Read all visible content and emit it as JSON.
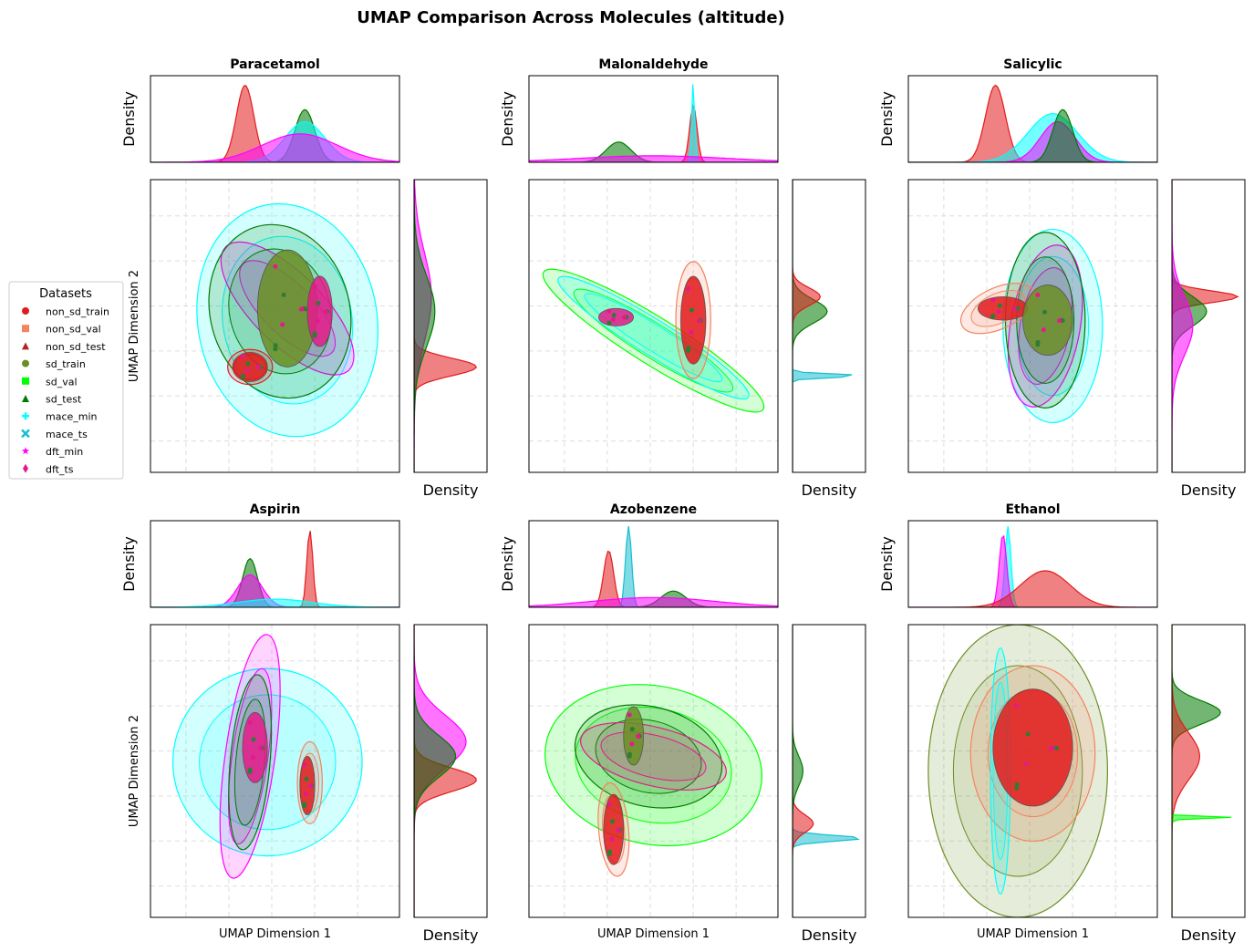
{
  "figure": {
    "title": "UMAP Comparison Across Molecules (altitude)"
  },
  "axes_text": {
    "density": "Density",
    "umap_x": "UMAP Dimension 1",
    "umap_y": "UMAP Dimension 2"
  },
  "legend": {
    "title": "Datasets",
    "items": [
      {
        "label": "non_sd_train",
        "color": "#e31a1c",
        "marker": "circle"
      },
      {
        "label": "non_sd_val",
        "color": "#f4845f",
        "marker": "square"
      },
      {
        "label": "non_sd_test",
        "color": "#b22222",
        "marker": "triangle"
      },
      {
        "label": "sd_train",
        "color": "#6b8e23",
        "marker": "circle"
      },
      {
        "label": "sd_val",
        "color": "#00ff00",
        "marker": "square"
      },
      {
        "label": "sd_test",
        "color": "#007a00",
        "marker": "triangle"
      },
      {
        "label": "mace_min",
        "color": "#00ffff",
        "marker": "plus"
      },
      {
        "label": "mace_ts",
        "color": "#17becf",
        "marker": "x"
      },
      {
        "label": "dft_min",
        "color": "#ff00ff",
        "marker": "star"
      },
      {
        "label": "dft_ts",
        "color": "#e6198c",
        "marker": "diamond"
      }
    ]
  },
  "chart_data": [
    {
      "type": "scatter",
      "title": "Paracetamol",
      "xlabel": "",
      "ylabel": "UMAP Dimension 2",
      "grid": true,
      "clusters": [
        {
          "series": "non_sd_train",
          "x": 0.4,
          "y": 0.36,
          "rx": 0.07,
          "ry": 0.05
        },
        {
          "series": "sd_train",
          "x": 0.55,
          "y": 0.56,
          "rx": 0.12,
          "ry": 0.2
        },
        {
          "series": "dft_ts",
          "x": 0.68,
          "y": 0.55,
          "rx": 0.05,
          "ry": 0.12
        }
      ],
      "contours": [
        {
          "series": "mace_min",
          "x": 0.55,
          "y": 0.52,
          "rx": 0.36,
          "ry": 0.4,
          "rot": -10
        },
        {
          "series": "dft_min",
          "x": 0.55,
          "y": 0.56,
          "rx": 0.35,
          "ry": 0.12,
          "rot": 45
        },
        {
          "series": "sd_test",
          "x": 0.52,
          "y": 0.55,
          "rx": 0.28,
          "ry": 0.3,
          "rot": -15
        },
        {
          "series": "non_sd_train",
          "x": 0.4,
          "y": 0.36,
          "rx": 0.09,
          "ry": 0.06,
          "rot": 0
        }
      ],
      "marg_x": [
        {
          "series": "non_sd_train",
          "mu": 0.38,
          "s": 0.035,
          "h": 0.95
        },
        {
          "series": "sd_test",
          "mu": 0.62,
          "s": 0.04,
          "h": 0.65
        },
        {
          "series": "mace_min",
          "mu": 0.62,
          "s": 0.08,
          "h": 0.5
        },
        {
          "series": "dft_min",
          "mu": 0.6,
          "s": 0.15,
          "h": 0.35
        }
      ],
      "marg_y": [
        {
          "series": "non_sd_train",
          "mu": 0.36,
          "s": 0.03,
          "h": 0.9
        },
        {
          "series": "dft_min",
          "mu": 0.6,
          "s": 0.15,
          "h": 0.25
        },
        {
          "series": "sd_test",
          "mu": 0.55,
          "s": 0.12,
          "h": 0.3
        }
      ]
    },
    {
      "type": "scatter",
      "title": "Malonaldehyde",
      "xlabel": "",
      "ylabel": "",
      "grid": true,
      "clusters": [
        {
          "series": "non_sd_train",
          "x": 0.66,
          "y": 0.52,
          "rx": 0.05,
          "ry": 0.15
        },
        {
          "series": "dft_ts",
          "x": 0.35,
          "y": 0.53,
          "rx": 0.07,
          "ry": 0.03
        }
      ],
      "contours": [
        {
          "series": "sd_val",
          "x": 0.5,
          "y": 0.45,
          "rx": 0.52,
          "ry": 0.08,
          "rot": 32
        },
        {
          "series": "mace_min",
          "x": 0.5,
          "y": 0.46,
          "rx": 0.45,
          "ry": 0.06,
          "rot": 32
        },
        {
          "series": "non_sd_val",
          "x": 0.66,
          "y": 0.52,
          "rx": 0.07,
          "ry": 0.2,
          "rot": 0
        }
      ],
      "marg_x": [
        {
          "series": "non_sd_train",
          "mu": 0.66,
          "s": 0.015,
          "h": 0.7
        },
        {
          "series": "sd_test",
          "mu": 0.36,
          "s": 0.05,
          "h": 0.25
        },
        {
          "series": "mace_min",
          "mu": 0.66,
          "s": 0.006,
          "h": 1.0
        },
        {
          "series": "dft_min",
          "mu": 0.5,
          "s": 0.3,
          "h": 0.08
        }
      ],
      "marg_y": [
        {
          "series": "sd_test",
          "mu": 0.55,
          "s": 0.04,
          "h": 0.5
        },
        {
          "series": "non_sd_train",
          "mu": 0.6,
          "s": 0.03,
          "h": 0.4
        },
        {
          "series": "mace_ts",
          "mu": 0.33,
          "s": 0.006,
          "h": 1.0
        }
      ]
    },
    {
      "type": "scatter",
      "title": "Salicylic",
      "xlabel": "",
      "ylabel": "",
      "grid": true,
      "clusters": [
        {
          "series": "non_sd_train",
          "x": 0.38,
          "y": 0.56,
          "rx": 0.1,
          "ry": 0.04
        },
        {
          "series": "sd_train",
          "x": 0.56,
          "y": 0.52,
          "rx": 0.1,
          "ry": 0.12
        }
      ],
      "contours": [
        {
          "series": "mace_min",
          "x": 0.58,
          "y": 0.5,
          "rx": 0.2,
          "ry": 0.33,
          "rot": 0
        },
        {
          "series": "dft_min",
          "x": 0.55,
          "y": 0.5,
          "rx": 0.14,
          "ry": 0.28,
          "rot": 10
        },
        {
          "series": "sd_test",
          "x": 0.55,
          "y": 0.52,
          "rx": 0.16,
          "ry": 0.3,
          "rot": 0
        },
        {
          "series": "non_sd_val",
          "x": 0.36,
          "y": 0.56,
          "rx": 0.16,
          "ry": 0.07,
          "rot": -25
        }
      ],
      "marg_x": [
        {
          "series": "non_sd_train",
          "mu": 0.35,
          "s": 0.04,
          "h": 0.95
        },
        {
          "series": "mace_min",
          "mu": 0.58,
          "s": 0.1,
          "h": 0.6
        },
        {
          "series": "dft_min",
          "mu": 0.6,
          "s": 0.07,
          "h": 0.5
        },
        {
          "series": "sd_test",
          "mu": 0.62,
          "s": 0.04,
          "h": 0.65
        }
      ],
      "marg_y": [
        {
          "series": "non_sd_train",
          "mu": 0.6,
          "s": 0.02,
          "h": 0.95
        },
        {
          "series": "sd_test",
          "mu": 0.55,
          "s": 0.05,
          "h": 0.5
        },
        {
          "series": "dft_min",
          "mu": 0.5,
          "s": 0.1,
          "h": 0.3
        }
      ]
    },
    {
      "type": "scatter",
      "title": "Aspirin",
      "xlabel": "UMAP Dimension 1",
      "ylabel": "UMAP Dimension 2",
      "grid": true,
      "clusters": [
        {
          "series": "dft_ts",
          "x": 0.42,
          "y": 0.58,
          "rx": 0.05,
          "ry": 0.12
        },
        {
          "series": "non_sd_train",
          "x": 0.63,
          "y": 0.45,
          "rx": 0.03,
          "ry": 0.1
        }
      ],
      "contours": [
        {
          "series": "mace_min",
          "x": 0.47,
          "y": 0.53,
          "rx": 0.38,
          "ry": 0.32,
          "rot": 0
        },
        {
          "series": "dft_min",
          "x": 0.4,
          "y": 0.55,
          "rx": 0.1,
          "ry": 0.42,
          "rot": 8
        },
        {
          "series": "sd_test",
          "x": 0.4,
          "y": 0.53,
          "rx": 0.08,
          "ry": 0.3,
          "rot": 5
        },
        {
          "series": "non_sd_val",
          "x": 0.64,
          "y": 0.46,
          "rx": 0.05,
          "ry": 0.14,
          "rot": 0
        }
      ],
      "marg_x": [
        {
          "series": "sd_test",
          "mu": 0.4,
          "s": 0.03,
          "h": 0.6
        },
        {
          "series": "dft_min",
          "mu": 0.4,
          "s": 0.05,
          "h": 0.4
        },
        {
          "series": "non_sd_train",
          "mu": 0.64,
          "s": 0.012,
          "h": 0.95
        },
        {
          "series": "mace_min",
          "mu": 0.5,
          "s": 0.15,
          "h": 0.1
        }
      ],
      "marg_y": [
        {
          "series": "dft_min",
          "mu": 0.6,
          "s": 0.09,
          "h": 0.75
        },
        {
          "series": "non_sd_train",
          "mu": 0.47,
          "s": 0.04,
          "h": 0.9
        },
        {
          "series": "sd_test",
          "mu": 0.55,
          "s": 0.07,
          "h": 0.6
        }
      ]
    },
    {
      "type": "scatter",
      "title": "Azobenzene",
      "xlabel": "UMAP Dimension 1",
      "ylabel": "",
      "grid": true,
      "clusters": [
        {
          "series": "non_sd_train",
          "x": 0.34,
          "y": 0.3,
          "rx": 0.04,
          "ry": 0.12
        },
        {
          "series": "sd_train",
          "x": 0.42,
          "y": 0.62,
          "rx": 0.04,
          "ry": 0.1
        }
      ],
      "contours": [
        {
          "series": "sd_val",
          "x": 0.5,
          "y": 0.52,
          "rx": 0.44,
          "ry": 0.27,
          "rot": 12
        },
        {
          "series": "sd_test",
          "x": 0.48,
          "y": 0.55,
          "rx": 0.3,
          "ry": 0.17,
          "rot": 14
        },
        {
          "series": "dft_ts",
          "x": 0.5,
          "y": 0.55,
          "rx": 0.3,
          "ry": 0.1,
          "rot": 14
        },
        {
          "series": "non_sd_val",
          "x": 0.34,
          "y": 0.3,
          "rx": 0.06,
          "ry": 0.16,
          "rot": -5
        }
      ],
      "marg_x": [
        {
          "series": "non_sd_train",
          "mu": 0.32,
          "s": 0.02,
          "h": 0.7
        },
        {
          "series": "mace_ts",
          "mu": 0.4,
          "s": 0.012,
          "h": 1.0
        },
        {
          "series": "sd_test",
          "mu": 0.58,
          "s": 0.05,
          "h": 0.2
        },
        {
          "series": "dft_min",
          "mu": 0.5,
          "s": 0.25,
          "h": 0.12
        }
      ],
      "marg_y": [
        {
          "series": "mace_ts",
          "mu": 0.27,
          "s": 0.01,
          "h": 1.0
        },
        {
          "series": "non_sd_train",
          "mu": 0.32,
          "s": 0.03,
          "h": 0.3
        },
        {
          "series": "sd_test",
          "mu": 0.5,
          "s": 0.05,
          "h": 0.15
        }
      ]
    },
    {
      "type": "scatter",
      "title": "Ethanol",
      "xlabel": "UMAP Dimension 1",
      "ylabel": "",
      "grid": true,
      "clusters": [
        {
          "series": "non_sd_train",
          "x": 0.5,
          "y": 0.58,
          "rx": 0.16,
          "ry": 0.2
        }
      ],
      "contours": [
        {
          "series": "sd_train",
          "x": 0.44,
          "y": 0.5,
          "rx": 0.36,
          "ry": 0.5,
          "rot": 0
        },
        {
          "series": "non_sd_val",
          "x": 0.5,
          "y": 0.56,
          "rx": 0.25,
          "ry": 0.3,
          "rot": 0
        },
        {
          "series": "mace_min",
          "x": 0.37,
          "y": 0.5,
          "rx": 0.04,
          "ry": 0.42,
          "rot": 0
        }
      ],
      "marg_x": [
        {
          "series": "mace_min",
          "mu": 0.4,
          "s": 0.012,
          "h": 1.0
        },
        {
          "series": "dft_min",
          "mu": 0.38,
          "s": 0.015,
          "h": 0.9
        },
        {
          "series": "non_sd_train",
          "mu": 0.55,
          "s": 0.1,
          "h": 0.45
        }
      ],
      "marg_y": [
        {
          "series": "sd_test",
          "mu": 0.7,
          "s": 0.04,
          "h": 0.7
        },
        {
          "series": "non_sd_train",
          "mu": 0.55,
          "s": 0.08,
          "h": 0.4
        },
        {
          "series": "sd_val",
          "mu": 0.34,
          "s": 0.003,
          "h": 1.0
        }
      ]
    }
  ]
}
